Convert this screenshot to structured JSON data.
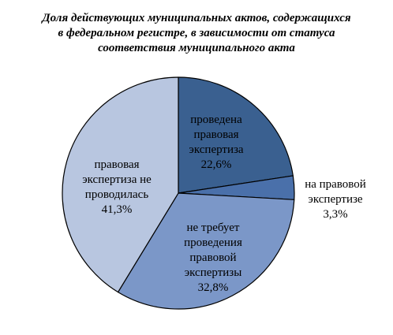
{
  "chart_data": {
    "type": "pie",
    "title": [
      "Доля действующих муниципальных актов, содержащихся",
      "в федеральном регистре, в зависимости от статуса",
      "соответствия муниципального акта"
    ],
    "slices": [
      {
        "label_lines": [
          "проведена",
          "правовая",
          "экспертиза"
        ],
        "value_label": "22,6%",
        "value": 22.6,
        "color": "#3a6090",
        "text_color": "#000000"
      },
      {
        "label_lines": [
          "на правовой",
          "экспертизе"
        ],
        "value_label": "3,3%",
        "value": 3.3,
        "color": "#4a70aa",
        "text_color": "#000000"
      },
      {
        "label_lines": [
          "не требует",
          "проведения",
          "правовой",
          "экспертизы"
        ],
        "value_label": "32,8%",
        "value": 32.8,
        "color": "#7b97c8",
        "text_color": "#000000"
      },
      {
        "label_lines": [
          "правовая",
          "экспертиза не",
          "проводилась"
        ],
        "value_label": "41,3%",
        "value": 41.3,
        "color": "#b8c6e0",
        "text_color": "#000000"
      }
    ]
  }
}
